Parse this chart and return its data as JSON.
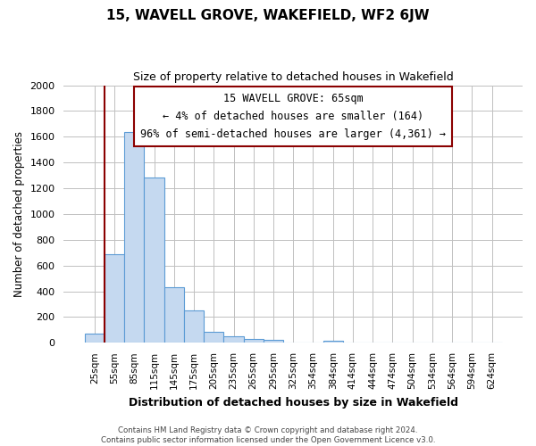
{
  "title": "15, WAVELL GROVE, WAKEFIELD, WF2 6JW",
  "subtitle": "Size of property relative to detached houses in Wakefield",
  "xlabel": "Distribution of detached houses by size in Wakefield",
  "ylabel": "Number of detached properties",
  "categories": [
    "25sqm",
    "55sqm",
    "85sqm",
    "115sqm",
    "145sqm",
    "175sqm",
    "205sqm",
    "235sqm",
    "265sqm",
    "295sqm",
    "325sqm",
    "354sqm",
    "384sqm",
    "414sqm",
    "444sqm",
    "474sqm",
    "504sqm",
    "534sqm",
    "564sqm",
    "594sqm",
    "624sqm"
  ],
  "values": [
    70,
    690,
    1635,
    1285,
    430,
    255,
    88,
    52,
    32,
    22,
    0,
    0,
    14,
    0,
    0,
    0,
    0,
    0,
    0,
    0,
    0
  ],
  "bar_color": "#c5d9f0",
  "bar_edge_color": "#5b9bd5",
  "marker_line_color": "#8b0000",
  "annotation_line1": "15 WAVELL GROVE: 65sqm",
  "annotation_line2": "← 4% of detached houses are smaller (164)",
  "annotation_line3": "96% of semi-detached houses are larger (4,361) →",
  "ylim": [
    0,
    2000
  ],
  "yticks": [
    0,
    200,
    400,
    600,
    800,
    1000,
    1200,
    1400,
    1600,
    1800,
    2000
  ],
  "footnote": "Contains HM Land Registry data © Crown copyright and database right 2024.\nContains public sector information licensed under the Open Government Licence v3.0.",
  "bg_color": "#ffffff",
  "grid_color": "#c0c0c0"
}
